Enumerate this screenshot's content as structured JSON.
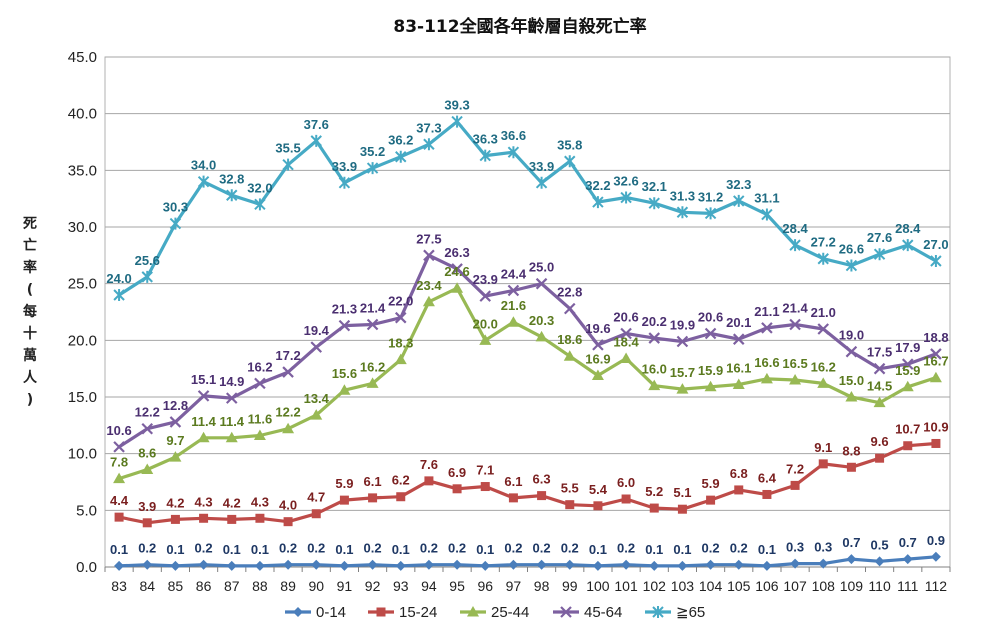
{
  "chart_data": {
    "type": "line",
    "title": "83-112全國各年齡層自殺死亡率",
    "ylabel": "死亡率(每十萬人)",
    "xlabel": "",
    "ylim": [
      0,
      45
    ],
    "yticks": [
      "0.0",
      "5.0",
      "10.0",
      "15.0",
      "20.0",
      "25.0",
      "30.0",
      "35.0",
      "40.0",
      "45.0"
    ],
    "grid": true,
    "legend": "bottom",
    "categories": [
      "83",
      "84",
      "85",
      "86",
      "87",
      "88",
      "89",
      "90",
      "91",
      "92",
      "93",
      "94",
      "95",
      "96",
      "97",
      "98",
      "99",
      "100",
      "101",
      "102",
      "103",
      "104",
      "105",
      "106",
      "107",
      "108",
      "109",
      "110",
      "111",
      "112"
    ],
    "series": [
      {
        "name": "0-14",
        "color": "#4a7ebb",
        "marker": "diamond",
        "values": [
          0.1,
          0.2,
          0.1,
          0.2,
          0.1,
          0.1,
          0.2,
          0.2,
          0.1,
          0.2,
          0.1,
          0.2,
          0.2,
          0.1,
          0.2,
          0.2,
          0.2,
          0.1,
          0.2,
          0.1,
          0.1,
          0.2,
          0.2,
          0.1,
          0.3,
          0.3,
          0.7,
          0.5,
          0.7,
          0.9
        ]
      },
      {
        "name": "15-24",
        "color": "#be4b48",
        "marker": "square",
        "values": [
          4.4,
          3.9,
          4.2,
          4.3,
          4.2,
          4.3,
          4.0,
          4.7,
          5.9,
          6.1,
          6.2,
          7.6,
          6.9,
          7.1,
          6.1,
          6.3,
          5.5,
          5.4,
          6.0,
          5.2,
          5.1,
          5.9,
          6.8,
          6.4,
          7.2,
          9.1,
          8.8,
          9.6,
          10.7,
          10.9
        ]
      },
      {
        "name": "25-44",
        "color": "#98b954",
        "marker": "triangle",
        "values": [
          7.8,
          8.6,
          9.7,
          11.4,
          11.4,
          11.6,
          12.2,
          13.4,
          15.6,
          16.2,
          18.3,
          23.4,
          24.6,
          20.0,
          21.6,
          20.3,
          18.6,
          16.9,
          18.4,
          16.0,
          15.7,
          15.9,
          16.1,
          16.6,
          16.5,
          16.2,
          15.0,
          14.5,
          15.9,
          16.7
        ]
      },
      {
        "name": "45-64",
        "color": "#7d60a0",
        "marker": "x",
        "values": [
          10.6,
          12.2,
          12.8,
          15.1,
          14.9,
          16.2,
          17.2,
          19.4,
          21.3,
          21.4,
          22.0,
          27.5,
          26.3,
          23.9,
          24.4,
          25.0,
          22.8,
          19.6,
          20.6,
          20.2,
          19.9,
          20.6,
          20.1,
          21.1,
          21.4,
          21.0,
          19.0,
          17.5,
          17.9,
          18.8
        ]
      },
      {
        "name": "≧65",
        "color": "#46aac5",
        "marker": "star",
        "values": [
          24.0,
          25.6,
          30.3,
          34.0,
          32.8,
          32.0,
          35.5,
          37.6,
          33.9,
          35.2,
          36.2,
          37.3,
          39.3,
          36.3,
          36.6,
          33.9,
          35.8,
          32.2,
          32.6,
          32.1,
          31.3,
          31.2,
          32.3,
          31.1,
          28.4,
          27.2,
          26.6,
          27.6,
          28.4,
          27.0
        ]
      }
    ],
    "label_colors": {
      "0-14": "#1f3864",
      "15-24": "#7a1f1f",
      "25-44": "#5b7a1f",
      "45-64": "#4b2f70",
      "≧65": "#1f6b82"
    }
  }
}
